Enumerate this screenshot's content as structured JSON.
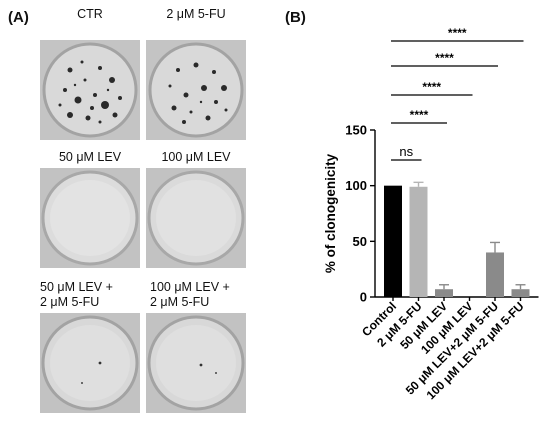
{
  "panel_a": {
    "label": "(A)",
    "plates": [
      {
        "title_lines": [
          "CTR"
        ],
        "colonies": "many"
      },
      {
        "title_lines": [
          "2 μM 5-FU"
        ],
        "colonies": "many"
      },
      {
        "title_lines": [
          "50 μM LEV"
        ],
        "colonies": "none"
      },
      {
        "title_lines": [
          "100 μM LEV"
        ],
        "colonies": "none"
      },
      {
        "title_lines": [
          "50 μM LEV +",
          "2 μM 5-FU"
        ],
        "colonies": "few"
      },
      {
        "title_lines": [
          "100 μM LEV +",
          "2 μM 5-FU"
        ],
        "colonies": "few"
      }
    ]
  },
  "panel_b": {
    "label": "(B)"
  },
  "chart_data": {
    "type": "bar",
    "categories": [
      "Control",
      "2 μM 5-FU",
      "50 μM LEV",
      "100 μM LEV",
      "50 μM LEV+2 μM 5-FU",
      "100 μM LEV+2 μM 5-FU"
    ],
    "values": [
      100,
      99,
      7,
      0,
      40,
      7
    ],
    "errors": [
      0,
      4,
      4,
      0,
      9,
      4
    ],
    "bar_colors": [
      "#000000",
      "#b5b5b5",
      "#8a8a8a",
      "#8a8a8a",
      "#8a8a8a",
      "#8a8a8a"
    ],
    "ylabel": "% of clonogenicity",
    "ylim": [
      0,
      150
    ],
    "yticks": [
      0,
      50,
      100,
      150
    ],
    "grid": false,
    "comparisons": [
      {
        "from": 0,
        "to": 1,
        "label": "ns"
      },
      {
        "from": 0,
        "to": 2,
        "label": "****"
      },
      {
        "from": 0,
        "to": 3,
        "label": "****"
      },
      {
        "from": 0,
        "to": 4,
        "label": "****"
      },
      {
        "from": 0,
        "to": 5,
        "label": "****"
      }
    ]
  }
}
